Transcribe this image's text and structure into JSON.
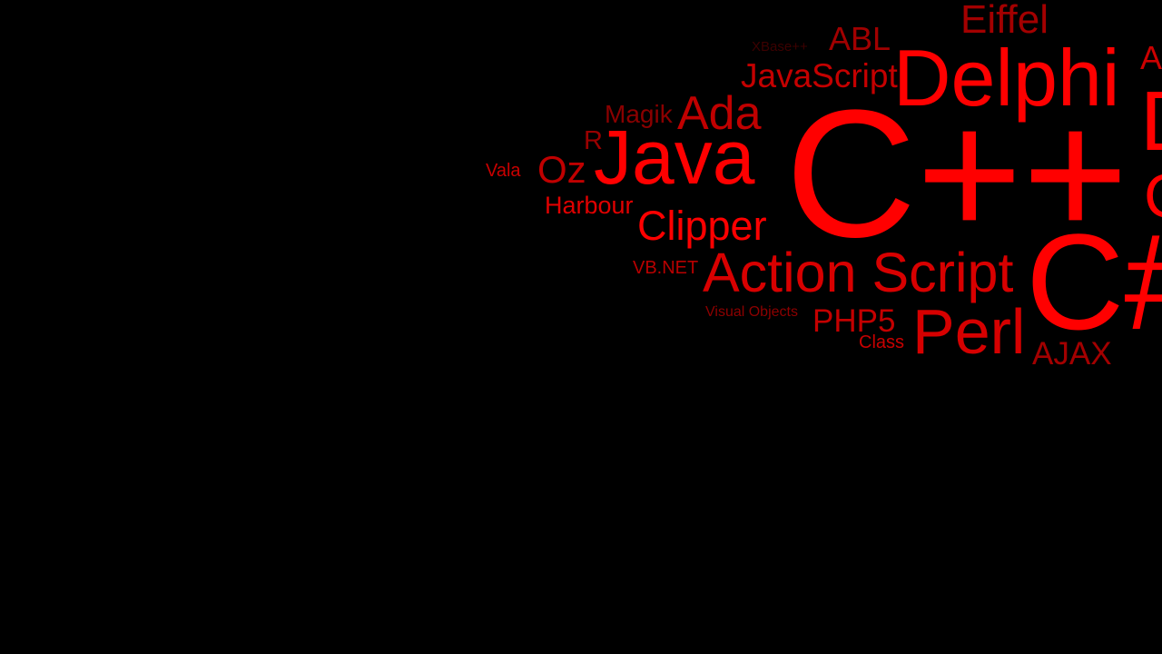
{
  "background_color": "#000000",
  "words": [
    {
      "text": "Eiffel",
      "color": "#a30000"
    },
    {
      "text": "XBase++",
      "color": "#3d0000"
    },
    {
      "text": "ABL",
      "color": "#a10000"
    },
    {
      "text": "A",
      "color": "#cc0000"
    },
    {
      "text": "JavaScript",
      "color": "#c40000"
    },
    {
      "text": "Delphi",
      "color": "#ff0000"
    },
    {
      "text": "D",
      "color": "#ff0000"
    },
    {
      "text": "Magik",
      "color": "#8a0000"
    },
    {
      "text": "Ada",
      "color": "#c00000"
    },
    {
      "text": "R",
      "color": "#9a0000"
    },
    {
      "text": "Java",
      "color": "#ff0000"
    },
    {
      "text": "C++",
      "color": "#ff0000"
    },
    {
      "text": "Vala",
      "color": "#c80000"
    },
    {
      "text": "Oz",
      "color": "#c00000"
    },
    {
      "text": "C",
      "color": "#ff0000"
    },
    {
      "text": "Harbour",
      "color": "#e00000"
    },
    {
      "text": "Clipper",
      "color": "#ff0000"
    },
    {
      "text": "VB.NET",
      "color": "#b80000"
    },
    {
      "text": "Action Script",
      "color": "#d80000"
    },
    {
      "text": "C#",
      "color": "#ff0000"
    },
    {
      "text": "Visual Objects",
      "color": "#8e0000"
    },
    {
      "text": "PHP5",
      "color": "#c40000"
    },
    {
      "text": "Perl",
      "color": "#d60000"
    },
    {
      "text": "Class",
      "color": "#c80000"
    },
    {
      "text": "AJAX",
      "color": "#a30000"
    }
  ]
}
